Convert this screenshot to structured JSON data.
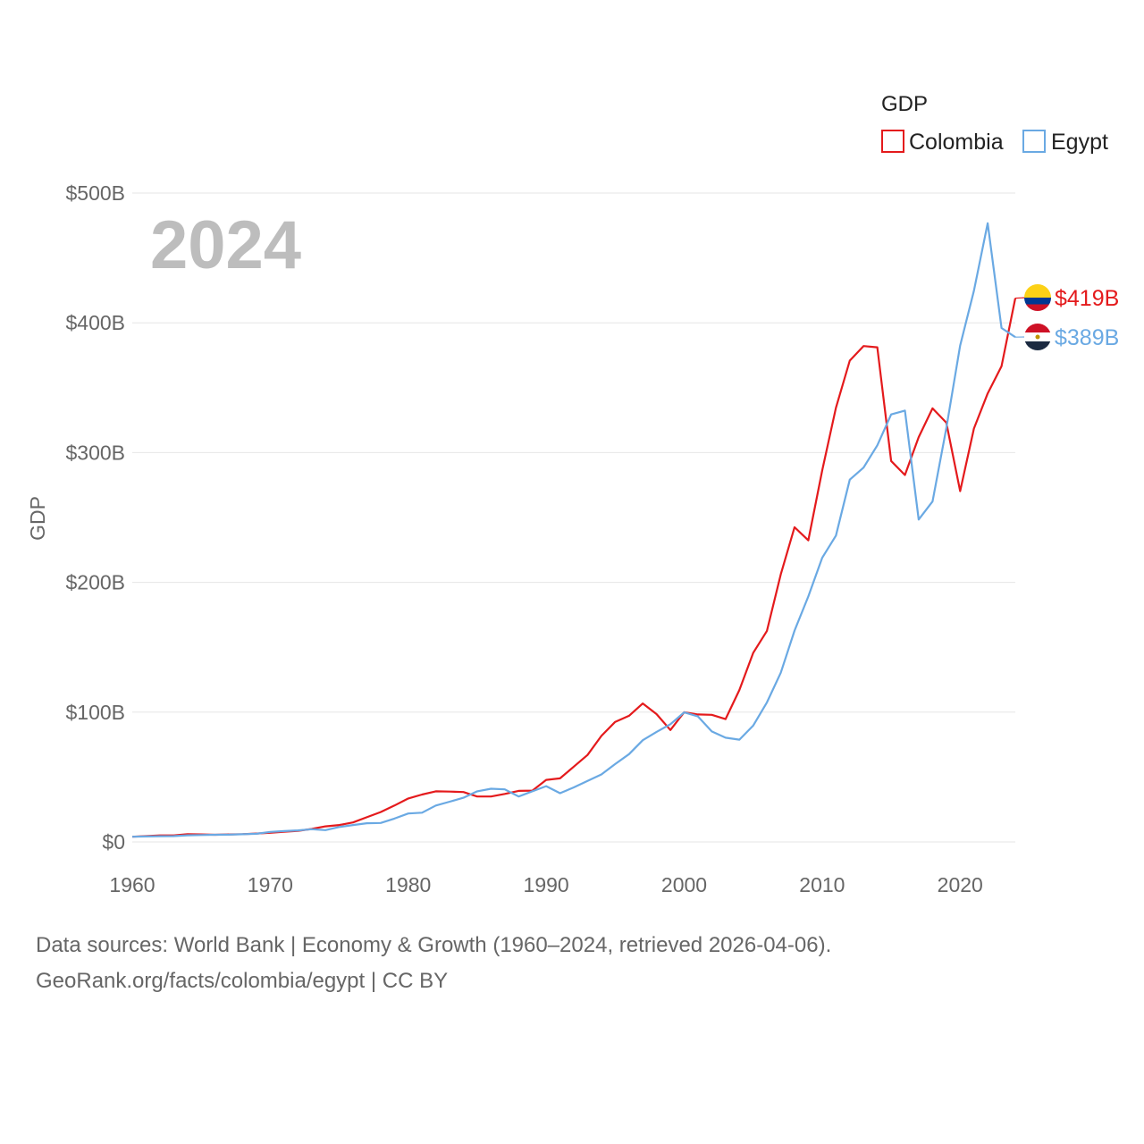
{
  "chart_data": {
    "type": "line",
    "title": "",
    "year_label": "2024",
    "ylabel": "GDP",
    "xlabel": "",
    "ylim": [
      0,
      500
    ],
    "y_ticks": [
      0,
      100,
      200,
      300,
      400,
      500
    ],
    "y_tick_labels": [
      "$0",
      "$100B",
      "$200B",
      "$300B",
      "$400B",
      "$500B"
    ],
    "x_ticks": [
      1960,
      1970,
      1980,
      1990,
      2000,
      2010,
      2020
    ],
    "x_tick_labels": [
      "1960",
      "1970",
      "1980",
      "1990",
      "2000",
      "2010",
      "2020"
    ],
    "xlim": [
      1960,
      2024
    ],
    "legend": {
      "title": "GDP",
      "position": "top-right",
      "entries": [
        "Colombia",
        "Egypt"
      ]
    },
    "x": [
      1960,
      1961,
      1962,
      1963,
      1964,
      1965,
      1966,
      1967,
      1968,
      1969,
      1970,
      1971,
      1972,
      1973,
      1974,
      1975,
      1976,
      1977,
      1978,
      1979,
      1980,
      1981,
      1982,
      1983,
      1984,
      1985,
      1986,
      1987,
      1988,
      1989,
      1990,
      1991,
      1992,
      1993,
      1994,
      1995,
      1996,
      1997,
      1998,
      1999,
      2000,
      2001,
      2002,
      2003,
      2004,
      2005,
      2006,
      2007,
      2008,
      2009,
      2010,
      2011,
      2012,
      2013,
      2014,
      2015,
      2016,
      2017,
      2018,
      2019,
      2020,
      2021,
      2022,
      2023,
      2024
    ],
    "series": [
      {
        "name": "Colombia",
        "color": "#e41a1c",
        "end_label": "$419B",
        "values": [
          4,
          4.5,
          5,
          5,
          6,
          5.8,
          5.5,
          5.8,
          6,
          6.5,
          7,
          7.8,
          8.5,
          10,
          12,
          13,
          15,
          19,
          23,
          28,
          33.5,
          36.5,
          39,
          38.8,
          38.4,
          35,
          35,
          37,
          39.3,
          39.5,
          47.8,
          49,
          58,
          67,
          81.7,
          92.5,
          97.2,
          106.7,
          98.5,
          86.2,
          99.9,
          98.2,
          97.9,
          94.6,
          117.1,
          145.6,
          162.6,
          206.2,
          242.5,
          232.4,
          286.1,
          334.5,
          370.9,
          382.1,
          381.1,
          293.5,
          282.7,
          311.9,
          334.1,
          323.1,
          270.3,
          318.5,
          345.6,
          366.6,
          419
        ]
      },
      {
        "name": "Egypt",
        "color": "#6aa9e3",
        "end_label": "$389B",
        "values": [
          4,
          4.2,
          4.4,
          4.5,
          5.1,
          5.3,
          5.5,
          5.6,
          5.9,
          6.3,
          7.7,
          8.3,
          8.9,
          9.8,
          9.1,
          11.5,
          13,
          14.4,
          14.6,
          18,
          21.9,
          22.5,
          28,
          31,
          34,
          39,
          41,
          40.5,
          35,
          39,
          43,
          37.5,
          42,
          47,
          52,
          60,
          67.6,
          78.4,
          84.8,
          90.7,
          99.8,
          96.7,
          85.1,
          80.3,
          78.8,
          89.6,
          107.5,
          130.4,
          162.8,
          189.1,
          218.9,
          236,
          279.1,
          288.4,
          305.6,
          329.4,
          332.4,
          248.4,
          262.3,
          318.7,
          382.5,
          424.7,
          476.7,
          396,
          389
        ]
      }
    ]
  },
  "footer": {
    "line1": "Data sources: World Bank | Economy & Growth (1960–2024, retrieved 2026-04-06).",
    "line2": "GeoRank.org/facts/colombia/egypt | CC BY"
  }
}
